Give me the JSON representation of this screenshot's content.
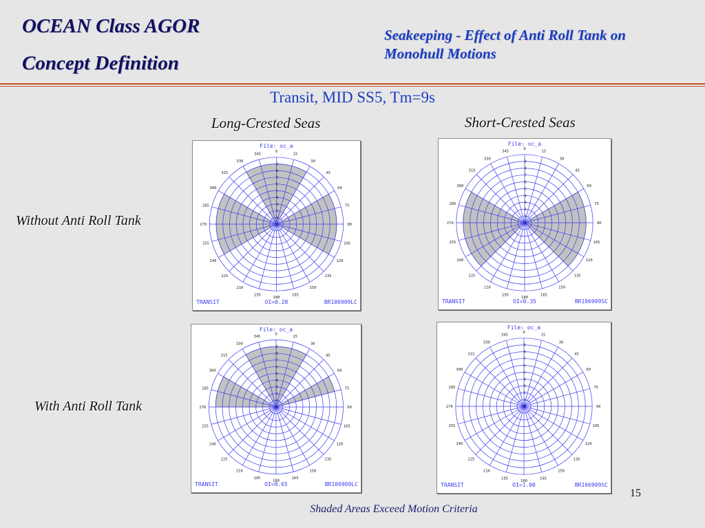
{
  "header": {
    "title_line1": "OCEAN Class AGOR",
    "title_line2": "Concept Definition",
    "subtitle": "Seakeeping - Effect of Anti Roll Tank on Monohull Motions"
  },
  "condition": "Transit, MID SS5, Tm=9s",
  "columns": [
    "Long-Crested Seas",
    "Short-Crested Seas"
  ],
  "rows": [
    "Without Anti Roll Tank",
    "With Anti Roll Tank"
  ],
  "plot_common": {
    "file_label": "File: oc_a",
    "speed_labels": [
      "0",
      "1",
      "2",
      "3",
      "4",
      "5",
      "6",
      "7",
      "8",
      "9"
    ],
    "heading_labels": [
      "0",
      "15",
      "30",
      "45",
      "60",
      "75",
      "90",
      "105",
      "120",
      "135",
      "150",
      "165",
      "180",
      "195",
      "210",
      "225",
      "240",
      "255",
      "270",
      "285",
      "300",
      "315",
      "330",
      "345"
    ],
    "grid_color": "#3a3af0",
    "shade_color": "#c2c2c2",
    "left_label": "TRANSIT"
  },
  "panels": [
    {
      "id": "without-long",
      "oi": "OI=0.28",
      "code": "BR106909LC",
      "shaded": [
        {
          "from": 330,
          "to": 30,
          "rmin": 0.5,
          "rmax": 9
        },
        {
          "from": 60,
          "to": 120,
          "rmin": 0.5,
          "rmax": 9
        },
        {
          "from": 240,
          "to": 300,
          "rmin": 0.5,
          "rmax": 9
        }
      ]
    },
    {
      "id": "without-short",
      "oi": "OI=0.35",
      "code": "BR106909SC",
      "shaded": [
        {
          "from": 60,
          "to": 135,
          "rmin": 0.5,
          "rmax": 9
        },
        {
          "from": 225,
          "to": 300,
          "rmin": 0.5,
          "rmax": 9
        }
      ]
    },
    {
      "id": "with-long",
      "oi": "OI=0.65",
      "code": "BR106909LC",
      "shaded": [
        {
          "from": 330,
          "to": 30,
          "rmin": 0.5,
          "rmax": 9
        },
        {
          "from": 60,
          "to": 75,
          "rmin": 0.5,
          "rmax": 9
        },
        {
          "from": 270,
          "to": 300,
          "rmin": 0.5,
          "rmax": 9
        }
      ]
    },
    {
      "id": "with-short",
      "oi": "OI=1.00",
      "code": "BR106909SC",
      "shaded": []
    }
  ],
  "slide_number": "15",
  "footer": "Shaded Areas Exceed Motion Criteria"
}
